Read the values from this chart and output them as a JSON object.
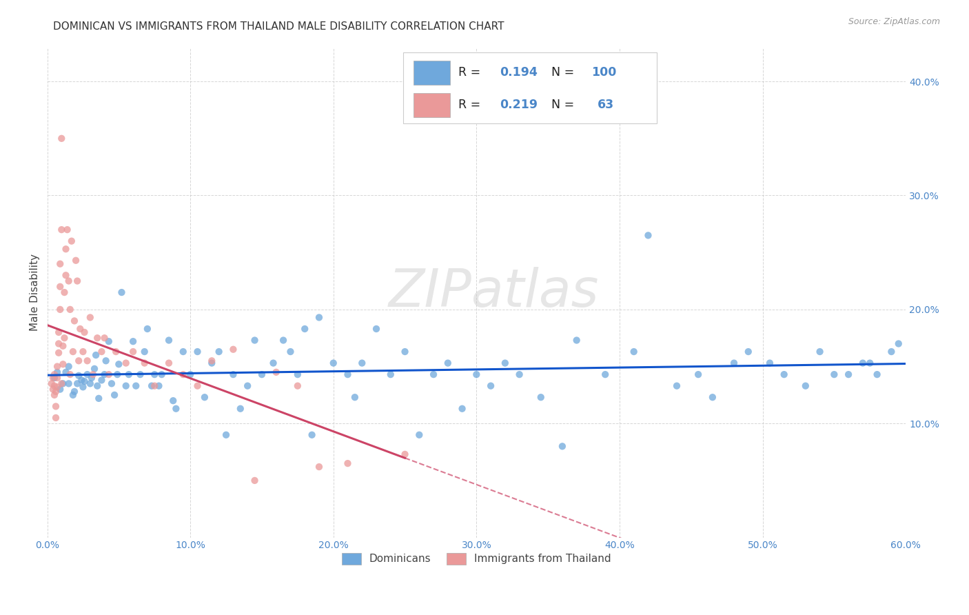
{
  "title": "DOMINICAN VS IMMIGRANTS FROM THAILAND MALE DISABILITY CORRELATION CHART",
  "source": "Source: ZipAtlas.com",
  "ylabel": "Male Disability",
  "watermark": "ZIPatlas",
  "legend_blue_r": "0.194",
  "legend_blue_n": "100",
  "legend_pink_r": "0.219",
  "legend_pink_n": "63",
  "legend_label1": "Dominicans",
  "legend_label2": "Immigrants from Thailand",
  "xlim": [
    0.0,
    0.6
  ],
  "ylim": [
    0.0,
    0.43
  ],
  "xticks": [
    0.0,
    0.1,
    0.2,
    0.3,
    0.4,
    0.5,
    0.6
  ],
  "xticklabels": [
    "0.0%",
    "10.0%",
    "20.0%",
    "30.0%",
    "40.0%",
    "50.0%",
    "60.0%"
  ],
  "yticks": [
    0.0,
    0.1,
    0.2,
    0.3,
    0.4
  ],
  "yticklabels_right": [
    "",
    "10.0%",
    "20.0%",
    "30.0%",
    "40.0%"
  ],
  "blue_color": "#6fa8dc",
  "pink_color": "#ea9999",
  "blue_line_color": "#1155cc",
  "pink_line_color": "#cc4466",
  "grid_color": "#cccccc",
  "background_color": "#ffffff",
  "title_color": "#333333",
  "axis_label_color": "#4a86c8",
  "blue_dots_x": [
    0.005,
    0.007,
    0.009,
    0.011,
    0.013,
    0.015,
    0.015,
    0.018,
    0.019,
    0.021,
    0.022,
    0.024,
    0.025,
    0.026,
    0.028,
    0.03,
    0.031,
    0.033,
    0.034,
    0.035,
    0.036,
    0.038,
    0.04,
    0.041,
    0.043,
    0.045,
    0.047,
    0.049,
    0.05,
    0.052,
    0.055,
    0.057,
    0.06,
    0.062,
    0.065,
    0.068,
    0.07,
    0.073,
    0.075,
    0.078,
    0.08,
    0.085,
    0.088,
    0.09,
    0.095,
    0.1,
    0.105,
    0.11,
    0.115,
    0.12,
    0.125,
    0.13,
    0.135,
    0.14,
    0.145,
    0.15,
    0.158,
    0.165,
    0.17,
    0.175,
    0.18,
    0.185,
    0.19,
    0.2,
    0.21,
    0.215,
    0.22,
    0.23,
    0.24,
    0.25,
    0.26,
    0.27,
    0.28,
    0.29,
    0.3,
    0.31,
    0.32,
    0.33,
    0.345,
    0.36,
    0.37,
    0.39,
    0.41,
    0.42,
    0.44,
    0.455,
    0.465,
    0.48,
    0.49,
    0.505,
    0.515,
    0.53,
    0.54,
    0.55,
    0.56,
    0.57,
    0.575,
    0.58,
    0.59,
    0.595
  ],
  "blue_dots_y": [
    0.14,
    0.145,
    0.13,
    0.135,
    0.145,
    0.15,
    0.135,
    0.125,
    0.128,
    0.135,
    0.142,
    0.138,
    0.132,
    0.137,
    0.143,
    0.135,
    0.14,
    0.148,
    0.16,
    0.133,
    0.122,
    0.138,
    0.143,
    0.155,
    0.172,
    0.135,
    0.125,
    0.143,
    0.152,
    0.215,
    0.133,
    0.143,
    0.172,
    0.133,
    0.143,
    0.163,
    0.183,
    0.133,
    0.143,
    0.133,
    0.143,
    0.173,
    0.12,
    0.113,
    0.163,
    0.143,
    0.163,
    0.123,
    0.153,
    0.163,
    0.09,
    0.143,
    0.113,
    0.133,
    0.173,
    0.143,
    0.153,
    0.173,
    0.163,
    0.143,
    0.183,
    0.09,
    0.193,
    0.153,
    0.143,
    0.123,
    0.153,
    0.183,
    0.143,
    0.163,
    0.09,
    0.143,
    0.153,
    0.113,
    0.143,
    0.133,
    0.153,
    0.143,
    0.123,
    0.08,
    0.173,
    0.143,
    0.163,
    0.265,
    0.133,
    0.143,
    0.123,
    0.153,
    0.163,
    0.153,
    0.143,
    0.133,
    0.163,
    0.143,
    0.143,
    0.153,
    0.153,
    0.143,
    0.163,
    0.17
  ],
  "pink_dots_x": [
    0.003,
    0.004,
    0.004,
    0.005,
    0.005,
    0.005,
    0.006,
    0.006,
    0.006,
    0.007,
    0.007,
    0.007,
    0.008,
    0.008,
    0.008,
    0.009,
    0.009,
    0.009,
    0.01,
    0.01,
    0.01,
    0.011,
    0.011,
    0.012,
    0.012,
    0.013,
    0.013,
    0.014,
    0.015,
    0.016,
    0.016,
    0.017,
    0.018,
    0.019,
    0.02,
    0.021,
    0.022,
    0.023,
    0.025,
    0.026,
    0.028,
    0.03,
    0.032,
    0.035,
    0.038,
    0.04,
    0.043,
    0.048,
    0.055,
    0.06,
    0.068,
    0.075,
    0.085,
    0.095,
    0.105,
    0.115,
    0.13,
    0.145,
    0.16,
    0.175,
    0.19,
    0.21,
    0.25
  ],
  "pink_dots_y": [
    0.135,
    0.14,
    0.13,
    0.143,
    0.125,
    0.133,
    0.128,
    0.115,
    0.105,
    0.14,
    0.132,
    0.15,
    0.162,
    0.17,
    0.18,
    0.2,
    0.22,
    0.24,
    0.27,
    0.35,
    0.135,
    0.152,
    0.168,
    0.175,
    0.215,
    0.23,
    0.253,
    0.27,
    0.225,
    0.2,
    0.143,
    0.26,
    0.163,
    0.19,
    0.243,
    0.225,
    0.155,
    0.183,
    0.163,
    0.18,
    0.155,
    0.193,
    0.143,
    0.175,
    0.163,
    0.175,
    0.143,
    0.163,
    0.153,
    0.163,
    0.153,
    0.133,
    0.153,
    0.143,
    0.133,
    0.155,
    0.165,
    0.05,
    0.145,
    0.133,
    0.062,
    0.065,
    0.073
  ]
}
